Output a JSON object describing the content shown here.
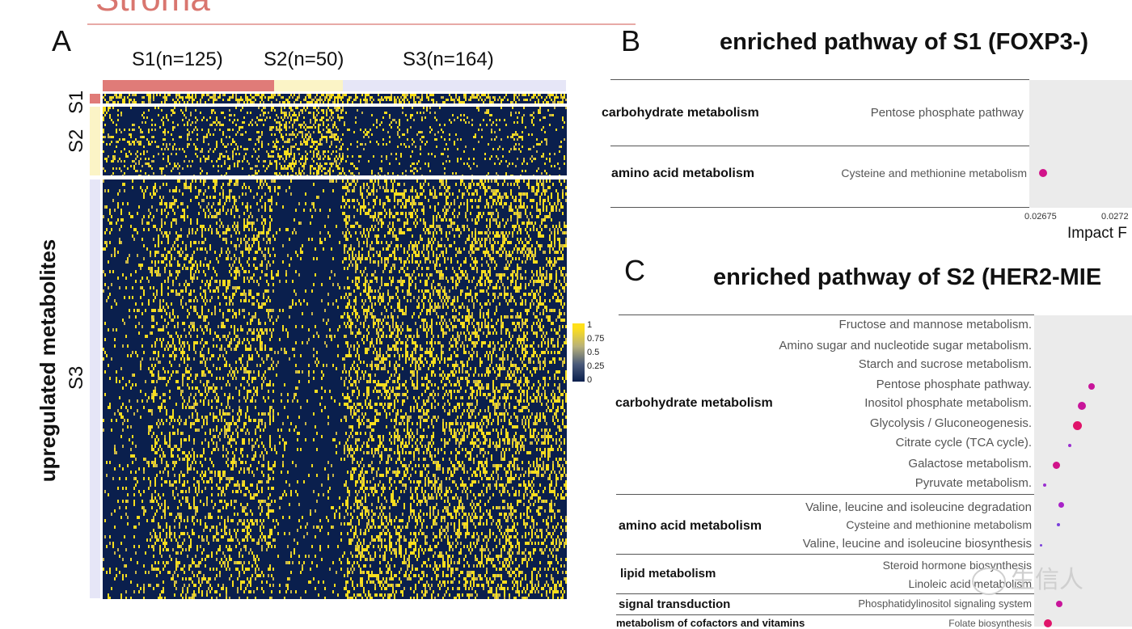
{
  "header": {
    "title": "Stroma"
  },
  "panel_a": {
    "letter": "A",
    "groups": [
      {
        "label": "S1(n=125)",
        "color": "#e07b78"
      },
      {
        "label": "S2(n=50)",
        "color": "#fbf4c6"
      },
      {
        "label": "S3(n=164)",
        "color": "#e6e6f7"
      }
    ],
    "row_groups": [
      {
        "label": "S1",
        "color": "#e07b78"
      },
      {
        "label": "S2",
        "color": "#fbf4c6"
      },
      {
        "label": "S3",
        "color": "#e6e6f7"
      }
    ],
    "y_label": "upregulated  metabolites",
    "legend": {
      "ticks": [
        "1",
        "0.75",
        "0.5",
        "0.25",
        "0"
      ],
      "low_color": "#0a1f4d",
      "high_color": "#ffe01a"
    }
  },
  "panel_b": {
    "letter": "B",
    "title": "enriched pathway of S1 (FOXP3-)",
    "categories": [
      {
        "name": "carbohydrate metabolism",
        "pathways": [
          "Pentose phosphate pathway"
        ]
      },
      {
        "name": "amino acid metabolism",
        "pathways": [
          "Cysteine and methionine metabolism"
        ]
      }
    ],
    "x_ticks": [
      "0.02675",
      "0.0272"
    ],
    "x_label": "Impact F",
    "point_color": "#d1148a"
  },
  "panel_c": {
    "letter": "C",
    "title": "enriched pathway of S2 (HER2-MIE",
    "categories": [
      {
        "name": "carbohydrate metabolism",
        "pathways": [
          "Fructose and mannose metabolism.",
          "Amino sugar and nucleotide sugar metabolism.",
          "Starch and sucrose metabolism.",
          "Pentose phosphate pathway.",
          "Inositol phosphate metabolism.",
          "Glycolysis / Gluconeogenesis.",
          "Citrate cycle (TCA cycle).",
          "Galactose metabolism.",
          "Pyruvate metabolism."
        ]
      },
      {
        "name": "amino acid metabolism",
        "pathways": [
          "Valine, leucine and isoleucine degradation",
          "Cysteine and methionine metabolism",
          "Valine, leucine and isoleucine biosynthesis"
        ]
      },
      {
        "name": "lipid metabolism",
        "pathways": [
          "Steroid hormone biosynthesis",
          "Linoleic acid metabolism"
        ]
      },
      {
        "name": "signal transduction",
        "pathways": [
          "Phosphatidylinositol signaling system"
        ]
      },
      {
        "name": "metabolism of cofactors and vitamins",
        "pathways": [
          "Folate biosynthesis"
        ]
      }
    ],
    "point_color": "#d1148a"
  },
  "watermark": {
    "text": "生信人"
  }
}
